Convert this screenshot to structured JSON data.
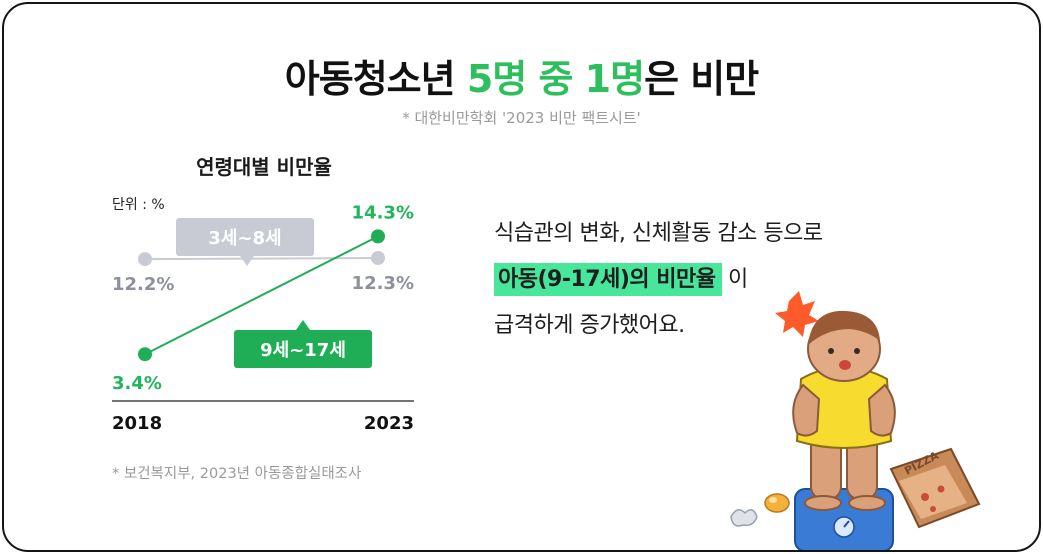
{
  "title": {
    "prefix": "아동청소년 ",
    "highlight": "5명 중 1명",
    "suffix": "은 비만"
  },
  "source_top": "* 대한비만학회 '2023 비만 팩트시트'",
  "chart_data": {
    "type": "line",
    "title": "연령대별 비만율",
    "unit": "단위 : %",
    "x": [
      "2018",
      "2023"
    ],
    "ylim": [
      0,
      16
    ],
    "grid": false,
    "series": [
      {
        "name": "3세~8세",
        "values": [
          12.2,
          12.3
        ],
        "labels": [
          "12.2%",
          "12.3%"
        ],
        "color": "#c8cbd3",
        "label_color": "#8e919c",
        "badge_color": "#c8cbd3"
      },
      {
        "name": "9세~17세",
        "values": [
          3.4,
          14.3
        ],
        "labels": [
          "3.4%",
          "14.3%"
        ],
        "color": "#1fae55",
        "label_color": "#22b65a",
        "badge_color": "#1fae55"
      }
    ]
  },
  "source_bottom": "* 보건복지부, 2023년 아동종합실태조사",
  "description": {
    "line1": "식습관의 변화, 신체활동 감소 등으로",
    "line2_highlight": "아동(9-17세)의 비만율",
    "line2_suffix": " 이",
    "line3": "급격하게 증가했어요."
  },
  "illustration": {
    "pizza_box_text": "PIZZA"
  },
  "colors": {
    "accent": "#2dbf5d",
    "highlight": "#48e69b",
    "border": "#141414"
  }
}
